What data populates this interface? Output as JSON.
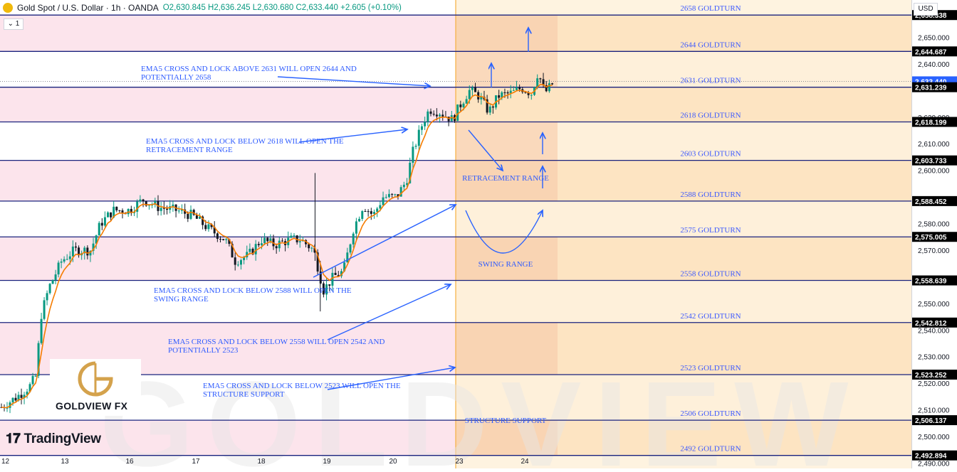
{
  "header": {
    "symbol": "Gold Spot / U.S. Dollar · 1h · OANDA",
    "ohlc": "O2,630.845 H2,636.245 L2,630.680 C2,633.440 +2.605 (+0.10%)",
    "interval_button": "1"
  },
  "currency_label": "USD",
  "brand": {
    "name": "GOLDVIEW FX",
    "platform": "TradingView",
    "watermark": "GOLDVIEW FX"
  },
  "colors": {
    "pink_band": "#fce4ec",
    "orange_band": "#fde2b8",
    "level_line": "#1a237e",
    "annotation": "#2962ff",
    "ema": "#f57c00",
    "up": "#089981",
    "down": "#131722",
    "session_line": "#f5b041"
  },
  "chart_data": {
    "type": "candlestick",
    "title": "Gold Spot / U.S. Dollar · 1h · OANDA",
    "y_axis": {
      "range": [
        2488,
        2664
      ],
      "tick_labels": [
        "2,650.000",
        "2,640.000",
        "2,620.000",
        "2,610.000",
        "2,600.000",
        "2,580.000",
        "2,570.000",
        "2,550.000",
        "2,540.000",
        "2,530.000",
        "2,520.000",
        "2,510.000",
        "2,500.000",
        "2,490.000"
      ],
      "ticks": [
        2650,
        2640,
        2620,
        2610,
        2600,
        2580,
        2570,
        2550,
        2540,
        2530,
        2520,
        2510,
        2500,
        2490
      ]
    },
    "x_axis": {
      "tick_labels": [
        "12",
        "13",
        "16",
        "17",
        "18",
        "19",
        "20",
        "23",
        "24"
      ],
      "ticks": [
        0,
        1,
        2,
        3,
        4,
        5,
        6,
        7,
        8
      ]
    },
    "price_labels": [
      {
        "text": "2,658.338",
        "value": 2658.338
      },
      {
        "text": "2,644.687",
        "value": 2644.687
      },
      {
        "text": "2,633.440",
        "value": 2633.44,
        "current": true
      },
      {
        "text": "2,631.239",
        "value": 2631.239
      },
      {
        "text": "2,618.199",
        "value": 2618.199
      },
      {
        "text": "2,603.733",
        "value": 2603.733
      },
      {
        "text": "2,588.452",
        "value": 2588.452
      },
      {
        "text": "2,575.005",
        "value": 2575.005
      },
      {
        "text": "2,558.639",
        "value": 2558.639
      },
      {
        "text": "2,542.812",
        "value": 2542.812
      },
      {
        "text": "2,523.252",
        "value": 2523.252
      },
      {
        "text": "2,506.137",
        "value": 2506.137
      },
      {
        "text": "2,492.894",
        "value": 2492.894
      }
    ],
    "levels": [
      {
        "label": "2658 GOLDTURN",
        "value": 2658.338
      },
      {
        "label": "2644 GOLDTURN",
        "value": 2644.687
      },
      {
        "label": "2631 GOLDTURN",
        "value": 2631.239
      },
      {
        "label": "2618 GOLDTURN",
        "value": 2618.199
      },
      {
        "label": "2603 GOLDTURN",
        "value": 2603.733
      },
      {
        "label": "2588 GOLDTURN",
        "value": 2588.452
      },
      {
        "label": "2575 GOLDTURN",
        "value": 2575.005
      },
      {
        "label": "2558 GOLDTURN",
        "value": 2558.639
      },
      {
        "label": "2542 GOLDTURN",
        "value": 2542.812
      },
      {
        "label": "2523 GOLDTURN",
        "value": 2523.252
      },
      {
        "label": "2506 GOLDTURN",
        "value": 2506.137
      },
      {
        "label": "2492 GOLDTURN",
        "value": 2492.894
      }
    ],
    "zones": [
      {
        "label": "RETRACEMENT RANGE",
        "from": 2588.452,
        "to": 2618.199
      },
      {
        "label": "SWING RANGE",
        "from": 2558.639,
        "to": 2575.005
      },
      {
        "label": "STRUCTURE SUPPORT",
        "from": 2492.894,
        "to": 2506.137
      }
    ],
    "annotations": [
      "EMA5 CROSS AND LOCK ABOVE 2631 WILL OPEN 2644 AND POTENTIALLY 2658",
      "EMA5 CROSS AND LOCK BELOW 2618 WILL OPEN THE RETRACEMENT RANGE",
      "EMA5 CROSS AND LOCK BELOW 2588 WILL OPEN THE SWING RANGE",
      "EMA5 CROSS AND LOCK BELOW 2558 WILL OPEN 2542 AND POTENTIALLY 2523",
      "EMA5 CROSS AND LOCK BELOW 2523 WILL OPEN THE STRUCTURE SUPPORT"
    ],
    "price_path": [
      [
        0.0,
        2511
      ],
      [
        0.25,
        2515
      ],
      [
        0.45,
        2519
      ],
      [
        0.55,
        2523
      ],
      [
        0.62,
        2545
      ],
      [
        0.75,
        2556
      ],
      [
        0.95,
        2566
      ],
      [
        1.15,
        2570
      ],
      [
        1.4,
        2570
      ],
      [
        1.55,
        2580
      ],
      [
        1.75,
        2585
      ],
      [
        2.0,
        2585
      ],
      [
        2.2,
        2589
      ],
      [
        2.45,
        2586
      ],
      [
        2.7,
        2585
      ],
      [
        2.95,
        2583
      ],
      [
        3.2,
        2578
      ],
      [
        3.45,
        2574
      ],
      [
        3.6,
        2566
      ],
      [
        3.8,
        2568
      ],
      [
        4.0,
        2574
      ],
      [
        4.2,
        2572
      ],
      [
        4.45,
        2574
      ],
      [
        4.6,
        2574
      ],
      [
        4.8,
        2570
      ],
      [
        4.95,
        2555
      ],
      [
        5.1,
        2560
      ],
      [
        5.25,
        2562
      ],
      [
        5.4,
        2578
      ],
      [
        5.55,
        2587
      ],
      [
        5.7,
        2583
      ],
      [
        5.85,
        2590
      ],
      [
        6.05,
        2590
      ],
      [
        6.2,
        2596
      ],
      [
        6.3,
        2607
      ],
      [
        6.45,
        2618
      ],
      [
        6.55,
        2623
      ],
      [
        6.7,
        2622
      ],
      [
        6.9,
        2619
      ],
      [
        7.0,
        2624
      ],
      [
        7.15,
        2630
      ],
      [
        7.3,
        2628
      ],
      [
        7.45,
        2622
      ],
      [
        7.6,
        2628
      ],
      [
        7.8,
        2629
      ],
      [
        7.95,
        2631
      ],
      [
        8.1,
        2629
      ],
      [
        8.2,
        2637
      ],
      [
        8.3,
        2629
      ],
      [
        8.45,
        2633.44
      ]
    ]
  }
}
